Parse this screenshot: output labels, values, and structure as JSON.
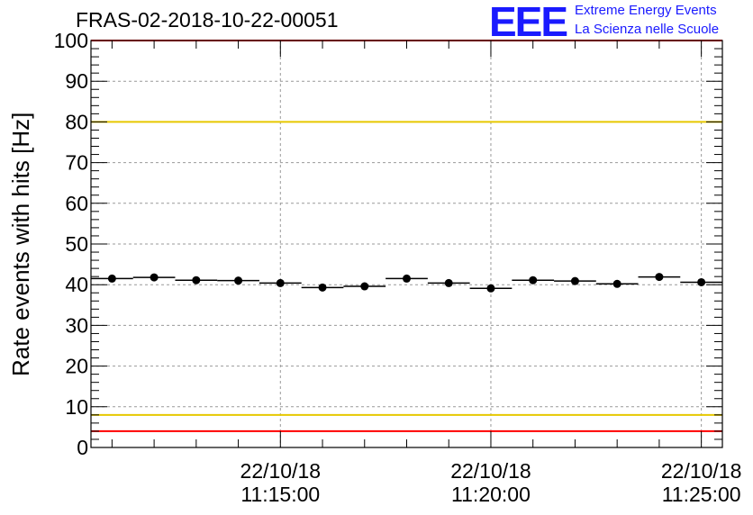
{
  "chart_data": {
    "type": "scatter",
    "title": "FRAS-02-2018-10-22-00051",
    "ylabel": "Rate events with hits [Hz]",
    "xlabel": "",
    "ylim": [
      0,
      100
    ],
    "yticks": [
      "0",
      "10",
      "20",
      "30",
      "40",
      "50",
      "60",
      "70",
      "80",
      "90",
      "100"
    ],
    "xticks": [
      {
        "date": "22/10/18",
        "time": "11:15:00"
      },
      {
        "date": "22/10/18",
        "time": "11:20:00"
      },
      {
        "date": "22/10/18",
        "time": "11:25:00"
      }
    ],
    "grid": true,
    "points": [
      41.5,
      41.8,
      41.1,
      41.0,
      40.4,
      39.3,
      39.6,
      41.5,
      40.4,
      39.1,
      41.1,
      40.9,
      40.2,
      41.9,
      40.6
    ],
    "reference_lines": [
      {
        "value": 100,
        "color": "#ff0000"
      },
      {
        "value": 80,
        "color": "#e6c800"
      },
      {
        "value": 8,
        "color": "#e6c800"
      },
      {
        "value": 4,
        "color": "#ff0000"
      }
    ]
  },
  "logo": {
    "mark": "EEE",
    "line1": "Extreme Energy Events",
    "line2": "La Scienza nelle Scuole"
  }
}
